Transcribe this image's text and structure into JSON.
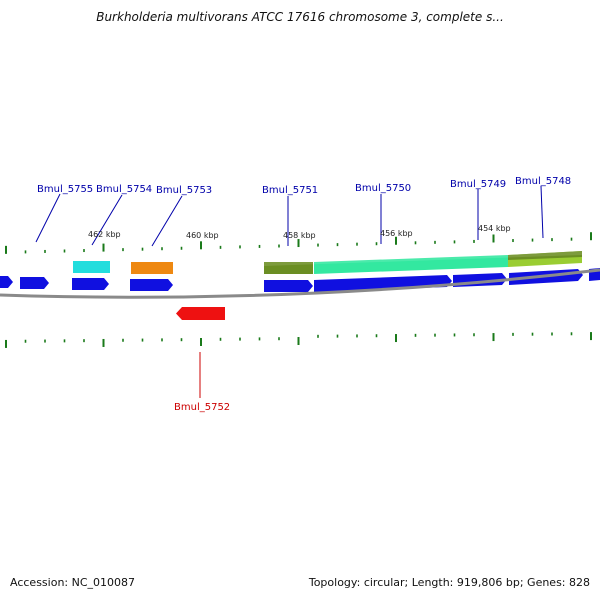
{
  "title": "Burkholderia multivorans ATCC 17616 chromosome 3, complete s...",
  "footer": {
    "accession": "Accession: NC_010087",
    "summary": "Topology: circular; Length: 919,806 bp; Genes: 828"
  },
  "colors": {
    "forward_gene": "#1010e0",
    "reverse_gene": "#ee1111",
    "label_forward": "#0000aa",
    "label_reverse": "#cc0000",
    "tick": "#1a7a1a",
    "backbone": "#888888"
  },
  "scale_labels": [
    "462 kbp",
    "460 kbp",
    "458 kbp",
    "456 kbp",
    "454 kbp"
  ],
  "gene_labels": [
    {
      "id": "Bmul_5755",
      "strand": "forward"
    },
    {
      "id": "Bmul_5754",
      "strand": "forward"
    },
    {
      "id": "Bmul_5753",
      "strand": "forward"
    },
    {
      "id": "Bmul_5751",
      "strand": "forward"
    },
    {
      "id": "Bmul_5750",
      "strand": "forward"
    },
    {
      "id": "Bmul_5749",
      "strand": "forward"
    },
    {
      "id": "Bmul_5748",
      "strand": "forward"
    },
    {
      "id": "Bmul_5752",
      "strand": "reverse"
    }
  ],
  "cog_colors": [
    "#22dddd",
    "#ee8811",
    "#6b8e23",
    "#33e8a0",
    "#9acd32"
  ]
}
